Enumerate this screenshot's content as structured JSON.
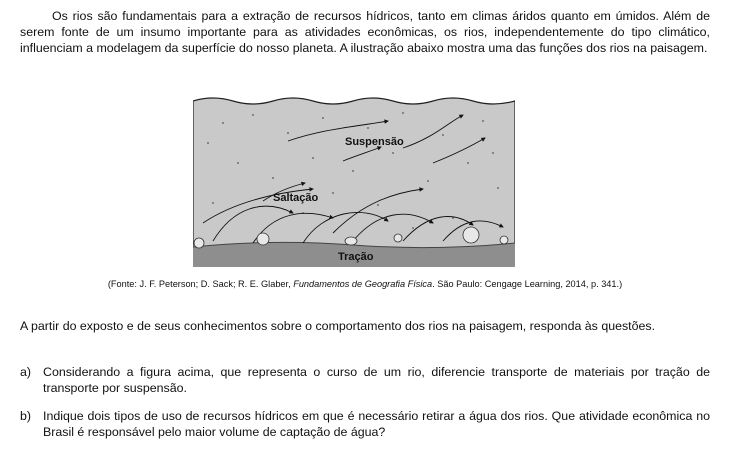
{
  "intro": "Os rios são fundamentais para a extração de recursos hídricos, tanto em climas áridos quanto em úmidos. Além de serem fonte de um insumo importante para as atividades econômicas, os rios, independentemente do tipo climático, influenciam a modelagem da superfície do nosso planeta. A ilustração abaixo mostra uma das funções dos rios na paisagem.",
  "figure": {
    "label_suspension": "Suspensão",
    "label_saltation": "Saltação",
    "label_traction": "Tração"
  },
  "caption": {
    "part1": "(Fonte: J. F. Peterson; D. Sack; R. E. Glaber, ",
    "title": "Fundamentos de Geografia Física",
    "part2": ". São Paulo: Cengage Learning, 2014, p. 341.)"
  },
  "prompt": "A partir do exposto e de seus conhecimentos sobre o comportamento dos rios na paisagem, responda às questões.",
  "questions": [
    {
      "letter": "a)",
      "text": "Considerando a figura acima, que representa o curso de um rio, diferencie transporte de materiais por tração de transporte por suspensão."
    },
    {
      "letter": "b)",
      "text": "Indique dois tipos de uso de recursos hídricos em que é necessário retirar a água dos rios. Que atividade econômica no Brasil é responsável pelo maior volume de captação de água?"
    }
  ]
}
